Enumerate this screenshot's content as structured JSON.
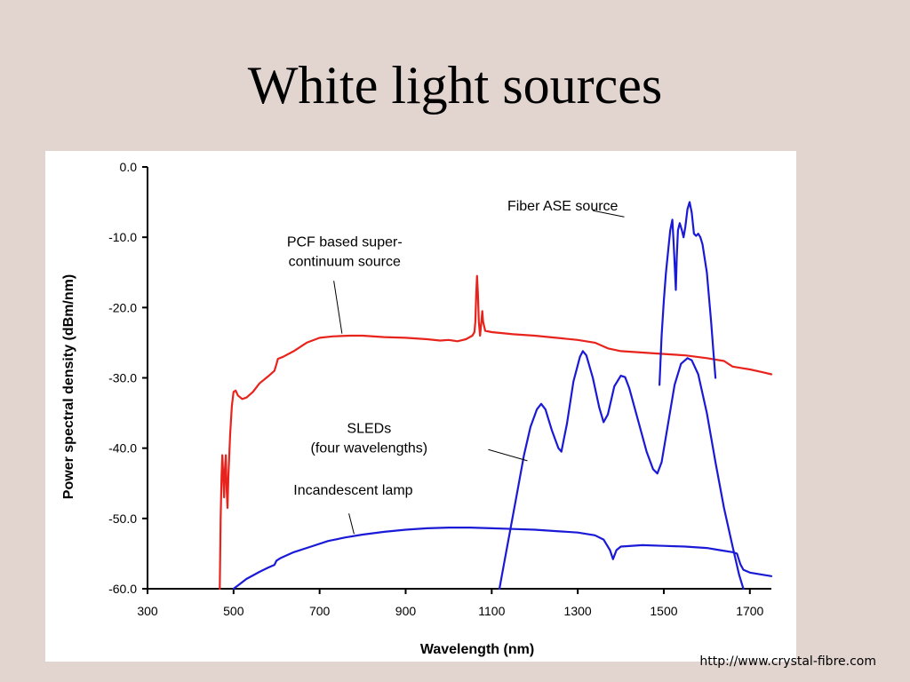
{
  "slide": {
    "title": "White light sources",
    "source_url": "http://www.crystal-fibre.com"
  },
  "chart_data": {
    "type": "line",
    "title": "",
    "xlabel": "Wavelength (nm)",
    "ylabel": "Power spectral density (dBm/nm)",
    "xlim": [
      300,
      1750
    ],
    "ylim": [
      -60,
      0
    ],
    "x_ticks": [
      300,
      500,
      700,
      900,
      1100,
      1300,
      1500,
      1700
    ],
    "x_tick_labels": [
      "300",
      "500",
      "700",
      "900",
      "1100",
      "1300",
      "1500",
      "1700"
    ],
    "y_ticks": [
      0,
      -10,
      -20,
      -30,
      -40,
      -50,
      -60
    ],
    "y_tick_labels": [
      "0.0",
      "-10.0",
      "-20.0",
      "-30.0",
      "-40.0",
      "-50.0",
      "-60.0"
    ],
    "grid": false,
    "colors": {
      "red": "#e8231c",
      "blue": "#1a1ad6",
      "axis": "#000000"
    },
    "series": [
      {
        "color": "#e8231c",
        "points": [
          [
            468,
            -60
          ],
          [
            470,
            -50
          ],
          [
            472,
            -44
          ],
          [
            474,
            -41
          ],
          [
            476,
            -44
          ],
          [
            478,
            -47
          ],
          [
            480,
            -43
          ],
          [
            482,
            -41
          ],
          [
            484,
            -46
          ],
          [
            486,
            -48.5
          ],
          [
            488,
            -44
          ],
          [
            492,
            -38
          ],
          [
            496,
            -34
          ],
          [
            500,
            -32
          ],
          [
            505,
            -31.8
          ],
          [
            510,
            -32.5
          ],
          [
            520,
            -33
          ],
          [
            530,
            -32.8
          ],
          [
            545,
            -32
          ],
          [
            560,
            -30.8
          ],
          [
            580,
            -29.8
          ],
          [
            595,
            -29
          ],
          [
            600,
            -28
          ],
          [
            603,
            -27.3
          ],
          [
            615,
            -27
          ],
          [
            640,
            -26.2
          ],
          [
            670,
            -25
          ],
          [
            700,
            -24.3
          ],
          [
            730,
            -24.1
          ],
          [
            770,
            -24
          ],
          [
            800,
            -24
          ],
          [
            850,
            -24.2
          ],
          [
            900,
            -24.3
          ],
          [
            950,
            -24.5
          ],
          [
            980,
            -24.7
          ],
          [
            1000,
            -24.6
          ],
          [
            1020,
            -24.8
          ],
          [
            1040,
            -24.5
          ],
          [
            1055,
            -24
          ],
          [
            1060,
            -23.5
          ],
          [
            1062,
            -22
          ],
          [
            1064,
            -18
          ],
          [
            1066,
            -15.5
          ],
          [
            1068,
            -18
          ],
          [
            1070,
            -22
          ],
          [
            1073,
            -24
          ],
          [
            1076,
            -22
          ],
          [
            1078,
            -20.5
          ],
          [
            1080,
            -22
          ],
          [
            1085,
            -23.3
          ],
          [
            1100,
            -23.5
          ],
          [
            1150,
            -23.8
          ],
          [
            1200,
            -24
          ],
          [
            1250,
            -24.3
          ],
          [
            1300,
            -24.6
          ],
          [
            1340,
            -25
          ],
          [
            1370,
            -25.8
          ],
          [
            1400,
            -26.2
          ],
          [
            1450,
            -26.4
          ],
          [
            1500,
            -26.6
          ],
          [
            1550,
            -26.8
          ],
          [
            1600,
            -27.2
          ],
          [
            1640,
            -27.6
          ],
          [
            1660,
            -28.4
          ],
          [
            1680,
            -28.6
          ],
          [
            1700,
            -28.8
          ],
          [
            1730,
            -29.2
          ],
          [
            1750,
            -29.5
          ]
        ]
      },
      {
        "color": "#1a1ad6",
        "points": [
          [
            500,
            -60
          ],
          [
            515,
            -59.3
          ],
          [
            530,
            -58.6
          ],
          [
            545,
            -58.1
          ],
          [
            560,
            -57.6
          ],
          [
            580,
            -57
          ],
          [
            595,
            -56.6
          ],
          [
            600,
            -56
          ],
          [
            610,
            -55.6
          ],
          [
            640,
            -54.8
          ],
          [
            680,
            -54
          ],
          [
            720,
            -53.2
          ],
          [
            760,
            -52.7
          ],
          [
            800,
            -52.3
          ],
          [
            850,
            -51.9
          ],
          [
            900,
            -51.6
          ],
          [
            950,
            -51.4
          ],
          [
            1000,
            -51.3
          ],
          [
            1050,
            -51.3
          ],
          [
            1100,
            -51.4
          ],
          [
            1150,
            -51.5
          ],
          [
            1200,
            -51.6
          ],
          [
            1250,
            -51.8
          ],
          [
            1300,
            -52
          ],
          [
            1340,
            -52.4
          ],
          [
            1360,
            -53
          ],
          [
            1375,
            -54.5
          ],
          [
            1382,
            -55.8
          ],
          [
            1390,
            -54.5
          ],
          [
            1400,
            -54
          ],
          [
            1450,
            -53.8
          ],
          [
            1500,
            -53.9
          ],
          [
            1550,
            -54
          ],
          [
            1600,
            -54.2
          ],
          [
            1630,
            -54.5
          ],
          [
            1660,
            -54.8
          ],
          [
            1670,
            -55
          ],
          [
            1678,
            -56.5
          ],
          [
            1685,
            -57.3
          ],
          [
            1700,
            -57.7
          ],
          [
            1720,
            -57.9
          ],
          [
            1750,
            -58.2
          ]
        ]
      },
      {
        "color": "#1a1ad6",
        "points": [
          [
            1118,
            -60
          ],
          [
            1130,
            -56
          ],
          [
            1145,
            -51
          ],
          [
            1160,
            -46
          ],
          [
            1175,
            -41
          ],
          [
            1190,
            -37
          ],
          [
            1205,
            -34.5
          ],
          [
            1215,
            -33.7
          ],
          [
            1225,
            -34.5
          ],
          [
            1240,
            -37.5
          ],
          [
            1255,
            -40
          ],
          [
            1262,
            -40.5
          ],
          [
            1275,
            -36.5
          ],
          [
            1290,
            -30.5
          ],
          [
            1305,
            -27
          ],
          [
            1312,
            -26.2
          ],
          [
            1320,
            -26.8
          ],
          [
            1335,
            -30
          ],
          [
            1350,
            -34.2
          ],
          [
            1360,
            -36.3
          ],
          [
            1370,
            -35.2
          ],
          [
            1385,
            -31.2
          ],
          [
            1400,
            -29.7
          ],
          [
            1410,
            -29.9
          ],
          [
            1420,
            -31.5
          ],
          [
            1440,
            -36
          ],
          [
            1460,
            -40.5
          ],
          [
            1475,
            -43
          ],
          [
            1485,
            -43.6
          ],
          [
            1495,
            -42
          ],
          [
            1510,
            -36.5
          ],
          [
            1525,
            -31
          ],
          [
            1540,
            -28
          ],
          [
            1555,
            -27.2
          ],
          [
            1565,
            -27.5
          ],
          [
            1580,
            -29.5
          ],
          [
            1600,
            -35
          ],
          [
            1620,
            -42
          ],
          [
            1640,
            -48.5
          ],
          [
            1660,
            -54
          ],
          [
            1675,
            -58
          ],
          [
            1685,
            -60
          ]
        ]
      },
      {
        "color": "#1a1ad6",
        "points": [
          [
            1490,
            -31
          ],
          [
            1495,
            -24
          ],
          [
            1500,
            -19
          ],
          [
            1505,
            -15
          ],
          [
            1510,
            -12
          ],
          [
            1515,
            -9
          ],
          [
            1520,
            -7.5
          ],
          [
            1523,
            -11
          ],
          [
            1526,
            -15
          ],
          [
            1528,
            -17.5
          ],
          [
            1530,
            -13
          ],
          [
            1533,
            -9
          ],
          [
            1537,
            -8
          ],
          [
            1542,
            -9
          ],
          [
            1546,
            -10
          ],
          [
            1550,
            -8.5
          ],
          [
            1555,
            -6
          ],
          [
            1560,
            -5
          ],
          [
            1565,
            -6.5
          ],
          [
            1570,
            -9.5
          ],
          [
            1575,
            -9.8
          ],
          [
            1580,
            -9.5
          ],
          [
            1585,
            -10
          ],
          [
            1590,
            -11
          ],
          [
            1600,
            -15
          ],
          [
            1610,
            -22
          ],
          [
            1615,
            -26
          ],
          [
            1620,
            -30
          ]
        ]
      }
    ],
    "annotations": [
      {
        "lines": [
          "Fiber ASE source"
        ],
        "x": 1265,
        "y": -6.2,
        "anchor": "middle",
        "pointer": [
          [
            1335,
            -6.2
          ],
          [
            1408,
            -7.1
          ]
        ]
      },
      {
        "lines": [
          "PCF based super-",
          "continuum source"
        ],
        "x": 758,
        "y": -11.3,
        "anchor": "middle",
        "pointer": [
          [
            733,
            -16.2
          ],
          [
            752,
            -23.7
          ]
        ]
      },
      {
        "lines": [
          "SLEDs",
          "(four wavelengths)"
        ],
        "x": 815,
        "y": -37.8,
        "anchor": "middle",
        "pointer": [
          [
            1092,
            -40.2
          ],
          [
            1183,
            -41.8
          ]
        ]
      },
      {
        "lines": [
          "Incandescent lamp"
        ],
        "x": 778,
        "y": -46.6,
        "anchor": "middle",
        "pointer": [
          [
            768,
            -49.3
          ],
          [
            780,
            -52.2
          ]
        ]
      }
    ]
  }
}
